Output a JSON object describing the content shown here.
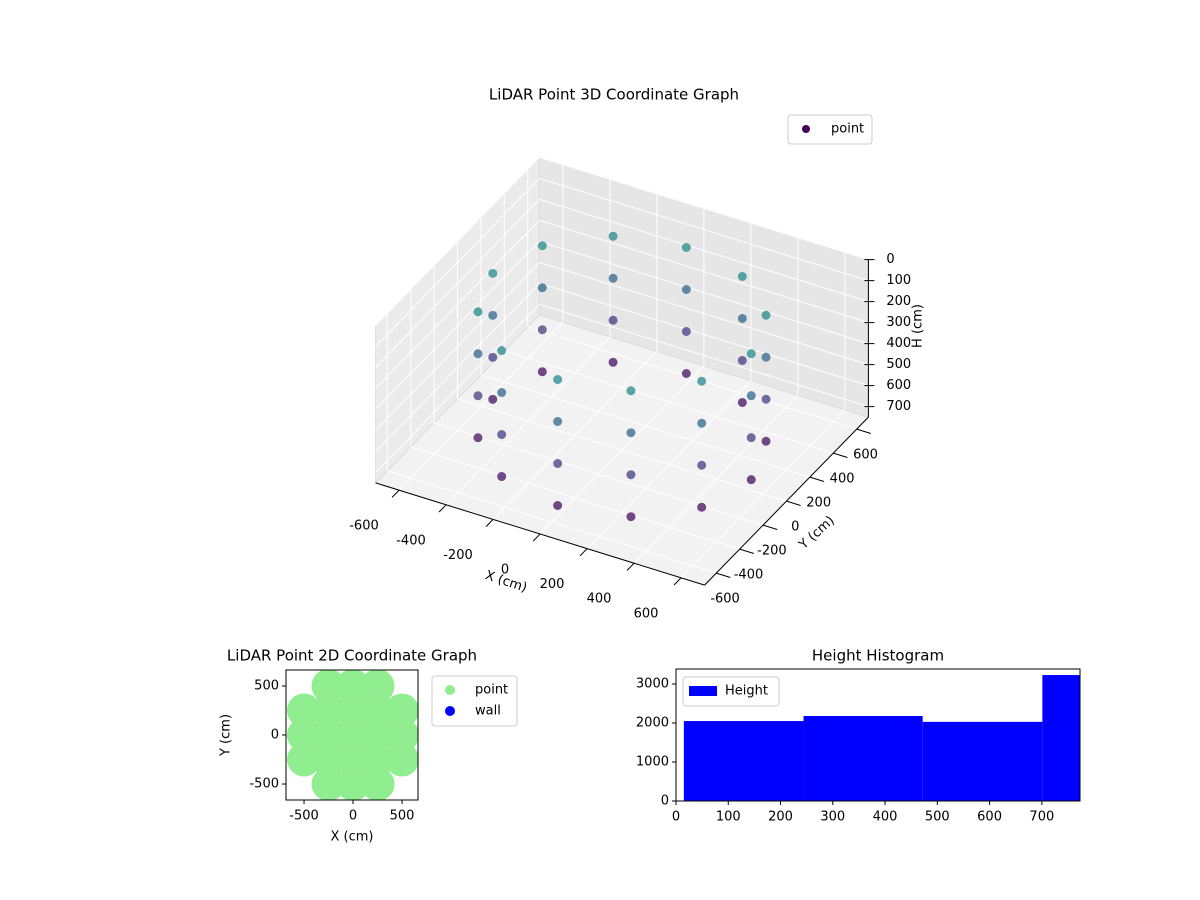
{
  "chart_data": [
    {
      "type": "scatter3d",
      "title": "LiDAR Point 3D Coordinate Graph",
      "xlabel": "X (cm)",
      "ylabel": "Y (cm)",
      "zlabel": "H (cm)",
      "xlim": [
        -700,
        700
      ],
      "ylim": [
        -700,
        700
      ],
      "zlim": [
        0,
        750
      ],
      "zinverted": true,
      "xticks": [
        -600,
        -400,
        -200,
        0,
        200,
        400,
        600
      ],
      "yticks": [
        -600,
        -400,
        -200,
        0,
        200,
        400,
        600
      ],
      "zticks": [
        0,
        100,
        200,
        300,
        400,
        500,
        600,
        700
      ],
      "legend": "upper right",
      "colormap": "viridis",
      "series": [
        {
          "name": "point",
          "color": "#440154",
          "x": [
            550,
            550,
            550,
            550,
            476,
            476,
            476,
            476,
            275,
            275,
            275,
            275,
            0,
            0,
            0,
            0,
            -275,
            -275,
            -275,
            -275,
            -476,
            -476,
            -476,
            -476,
            -550,
            -550,
            -550,
            -550,
            -476,
            -476,
            -476,
            -476,
            -275,
            -275,
            -275,
            -275,
            0,
            0,
            0,
            0,
            275,
            275,
            275,
            275,
            476,
            476,
            476,
            476
          ],
          "y": [
            0,
            0,
            0,
            0,
            275,
            275,
            275,
            275,
            476,
            476,
            476,
            476,
            550,
            550,
            550,
            550,
            476,
            476,
            476,
            476,
            275,
            275,
            275,
            275,
            0,
            0,
            0,
            0,
            -275,
            -275,
            -275,
            -275,
            -476,
            -476,
            -476,
            -476,
            -550,
            -550,
            -550,
            -550,
            -476,
            -476,
            -476,
            -476,
            -275,
            -275,
            -275,
            -275
          ],
          "z": [
            100,
            300,
            500,
            700,
            100,
            300,
            500,
            700,
            100,
            300,
            500,
            700,
            100,
            300,
            500,
            700,
            100,
            300,
            500,
            700,
            100,
            300,
            500,
            700,
            100,
            300,
            500,
            700,
            100,
            300,
            500,
            700,
            100,
            300,
            500,
            700,
            100,
            300,
            500,
            700,
            100,
            300,
            500,
            700,
            100,
            300,
            500,
            700
          ]
        }
      ]
    },
    {
      "type": "scatter",
      "title": "LiDAR Point 2D Coordinate Graph",
      "xlabel": "X (cm)",
      "ylabel": "Y (cm)",
      "xlim": [
        -684,
        663
      ],
      "ylim": [
        -663,
        663
      ],
      "xticks": [
        -500,
        0,
        500
      ],
      "yticks": [
        -500,
        0,
        500
      ],
      "legend": "outside upper right",
      "series": [
        {
          "name": "point",
          "color": "#90ee90",
          "x": [
            -250,
            0,
            250,
            -500,
            -250,
            0,
            250,
            500,
            -500,
            -250,
            0,
            250,
            500,
            -500,
            -250,
            0,
            250,
            500,
            -250,
            0,
            250
          ],
          "y": [
            500,
            500,
            500,
            250,
            250,
            250,
            250,
            250,
            0,
            0,
            0,
            0,
            0,
            -250,
            -250,
            -250,
            -250,
            -250,
            -500,
            -500,
            -500
          ]
        },
        {
          "name": "wall",
          "color": "#0000ff",
          "x": [],
          "y": []
        }
      ]
    },
    {
      "type": "histogram",
      "title": "Height Histogram",
      "bins": [
        15,
        244,
        472,
        701,
        773
      ],
      "xlim": [
        0,
        773
      ],
      "ylim": [
        0,
        3385
      ],
      "xticks": [
        0,
        100,
        200,
        300,
        400,
        500,
        600,
        700
      ],
      "yticks": [
        0,
        1000,
        2000,
        3000
      ],
      "legend": "upper left",
      "series": [
        {
          "name": "Height",
          "color": "#0000ff",
          "values": [
            2050,
            2180,
            2030,
            3230
          ]
        }
      ]
    }
  ]
}
